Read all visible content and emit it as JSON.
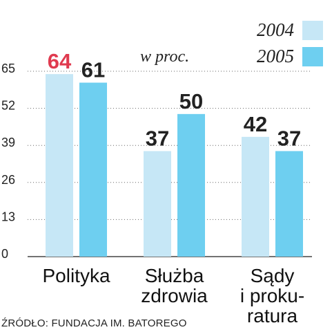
{
  "chart_data": {
    "type": "bar",
    "categories": [
      [
        "Polityka"
      ],
      [
        "Służba",
        "zdrowia"
      ],
      [
        "Sądy",
        "i proku-",
        "ratura"
      ]
    ],
    "series": [
      {
        "name": "2004",
        "values": [
          64,
          37,
          42
        ],
        "color": "#c6e7f6"
      },
      {
        "name": "2005",
        "values": [
          61,
          50,
          37
        ],
        "color": "#6ecff0"
      }
    ],
    "highlight_color": "#e03a4f",
    "highlight": {
      "series": 0,
      "index": 0
    },
    "yticks": [
      0,
      13,
      26,
      39,
      52,
      65
    ],
    "ylim": [
      0,
      65
    ],
    "unit": "w proc.",
    "grid": true,
    "legend_position": "top-right",
    "source": "ŹRÓDŁO: FUNDACJA IM. BATOREGO"
  }
}
